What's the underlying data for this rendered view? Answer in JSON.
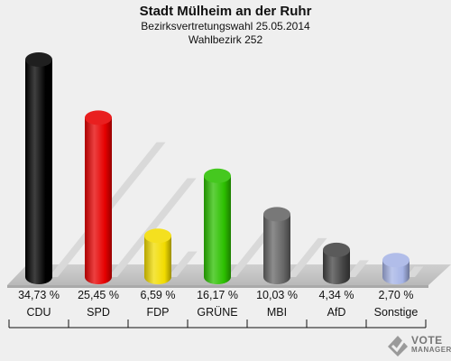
{
  "header": {
    "title": "Stadt Mülheim an der Ruhr",
    "subtitle": "Bezirksvertretungswahl 25.05.2014",
    "district": "Wahlbezirk 252"
  },
  "chart_data": {
    "type": "bar",
    "title": "Stadt Mülheim an der Ruhr",
    "subtitle": "Bezirksvertretungswahl 25.05.2014 — Wahlbezirk 252",
    "categories": [
      "CDU",
      "SPD",
      "FDP",
      "GRÜNE",
      "MBI",
      "AfD",
      "Sonstige"
    ],
    "values": [
      34.73,
      25.45,
      6.59,
      16.17,
      10.03,
      4.34,
      2.7
    ],
    "value_labels": [
      "34,73 %",
      "25,45 %",
      "6,59 %",
      "16,17 %",
      "10,03 %",
      "4,34 %",
      "2,70 %"
    ],
    "colors": [
      "#000000",
      "#e60000",
      "#f2dc00",
      "#2cc000",
      "#666666",
      "#444444",
      "#a6b4e6"
    ],
    "ylim": [
      0,
      34.73
    ],
    "grid": false,
    "legend": "none"
  },
  "logo": {
    "line1": "VOTE",
    "line2": "MANAGER"
  }
}
